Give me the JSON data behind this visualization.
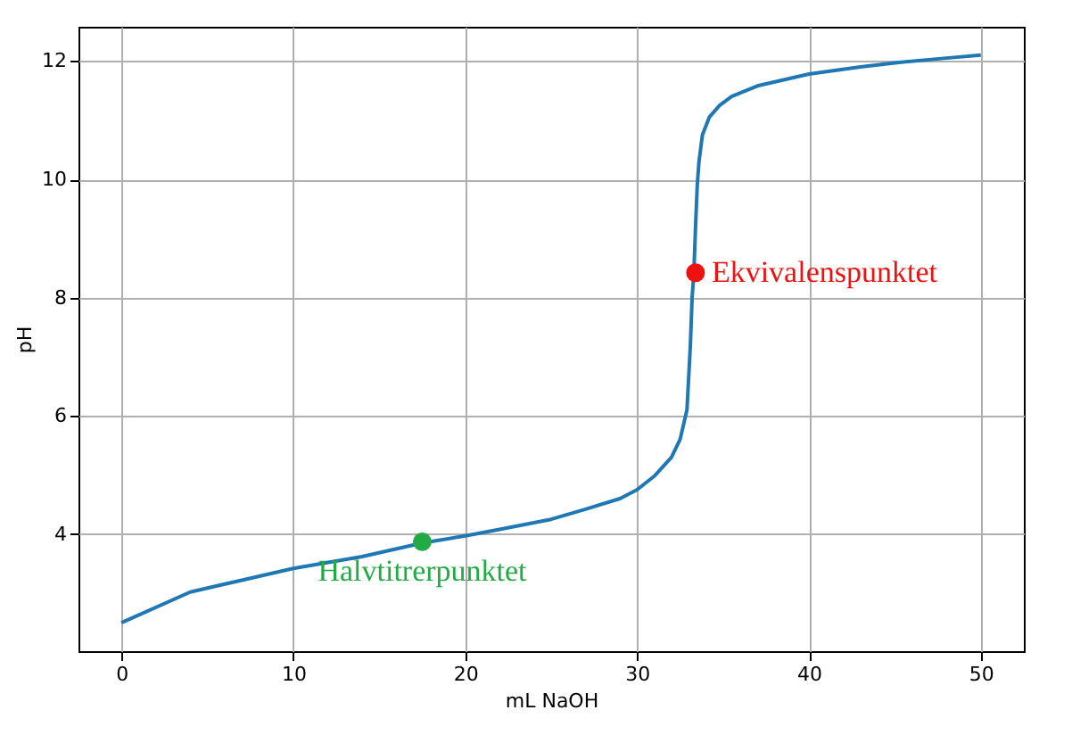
{
  "chart_data": {
    "type": "line",
    "xlabel": "mL NaOH",
    "ylabel": "pH",
    "xlim": [
      -2.5,
      52.5
    ],
    "ylim": [
      2.02,
      12.58
    ],
    "xticks": [
      0,
      10,
      20,
      30,
      40,
      50
    ],
    "yticks": [
      4,
      6,
      8,
      10,
      12
    ],
    "grid": true,
    "line_style": "solid",
    "series": [
      {
        "color": "#1f77b4",
        "x": [
          0,
          4,
          7,
          10,
          14,
          17.5,
          20,
          22,
          25,
          27,
          29,
          30,
          31,
          32,
          32.5,
          32.9,
          33.1,
          33.2,
          33.3,
          33.4,
          33.5,
          33.6,
          33.8,
          34.2,
          34.8,
          35.5,
          37,
          40,
          43,
          45,
          48,
          50
        ],
        "values": [
          2.5,
          3.02,
          3.22,
          3.42,
          3.62,
          3.85,
          3.97,
          4.08,
          4.25,
          4.42,
          4.6,
          4.75,
          4.98,
          5.3,
          5.6,
          6.1,
          7.2,
          8.0,
          8.4,
          9.2,
          9.9,
          10.3,
          10.75,
          11.05,
          11.25,
          11.4,
          11.58,
          11.78,
          11.9,
          11.97,
          12.05,
          12.1
        ]
      },
      {
        "type": "scatter",
        "marker": "circle",
        "color": "#ee1111",
        "x": [
          33.4
        ],
        "values": [
          8.42
        ]
      },
      {
        "type": "scatter",
        "marker": "circle",
        "color": "#22aa44",
        "x": [
          17.5
        ],
        "values": [
          3.87
        ]
      }
    ],
    "annotations": [
      {
        "text": "Ekvivalenspunktet",
        "x": 33.4,
        "y": 8.42
      },
      {
        "text": "Halvtitrerpunktet",
        "x": 17.5,
        "y": 3.87
      }
    ]
  }
}
